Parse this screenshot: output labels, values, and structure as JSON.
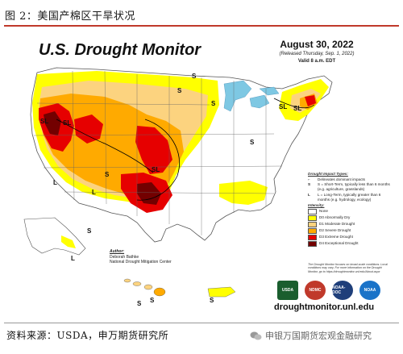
{
  "figure_caption": "图 2：美国产棉区干旱状况",
  "map": {
    "title": "U.S. Drought Monitor",
    "date": "August 30, 2022",
    "released": "(Released Thursday, Sep. 1, 2022)",
    "valid": "Valid 8 a.m. EDT",
    "map_labels": [
      "S",
      "S",
      "SL",
      "SL",
      "S",
      "SL",
      "L",
      "L",
      "S",
      "SL",
      "S",
      "SL",
      "S",
      "L",
      "S",
      "S",
      "S"
    ],
    "impact_legend": {
      "header": "Drought Impact Types:",
      "items": [
        {
          "symbol": "⌐",
          "text": "Delineates dominant impacts"
        },
        {
          "symbol": "S",
          "text": "S = Short-Term, typically less than 6 months (e.g. agriculture, grasslands)"
        },
        {
          "symbol": "L",
          "text": "L = Long-Term, typically greater than 6 months (e.g. hydrology, ecology)"
        }
      ]
    },
    "intensity_legend": {
      "header": "Intensity:",
      "items": [
        {
          "label": "None",
          "color": "#ffffff"
        },
        {
          "label": "D0 Abnormally Dry",
          "color": "#ffff00"
        },
        {
          "label": "D1 Moderate Drought",
          "color": "#fcd37f"
        },
        {
          "label": "D2 Severe Drought",
          "color": "#ffaa00"
        },
        {
          "label": "D3 Extreme Drought",
          "color": "#e60000"
        },
        {
          "label": "D4 Exceptional Drought",
          "color": "#730000"
        }
      ]
    },
    "author": {
      "label": "Author:",
      "name": "Deborah Bathke",
      "org": "National Drought Mitigation Center"
    },
    "note": "The Drought Monitor focuses on broad-scale conditions. Local conditions may vary. For more information on the Drought Monitor, go to https://droughtmonitor.unl.edu/About.aspx",
    "url": "droughtmonitor.unl.edu",
    "logos": [
      "USDA",
      "NDMC",
      "NOAA-DOC",
      "NOAA"
    ],
    "water_color": "#7ec8e3",
    "land_color": "#ffffff"
  },
  "source": "资料来源：USDA，申万期货研究所",
  "watermark": "申银万国期货宏观金融研究"
}
